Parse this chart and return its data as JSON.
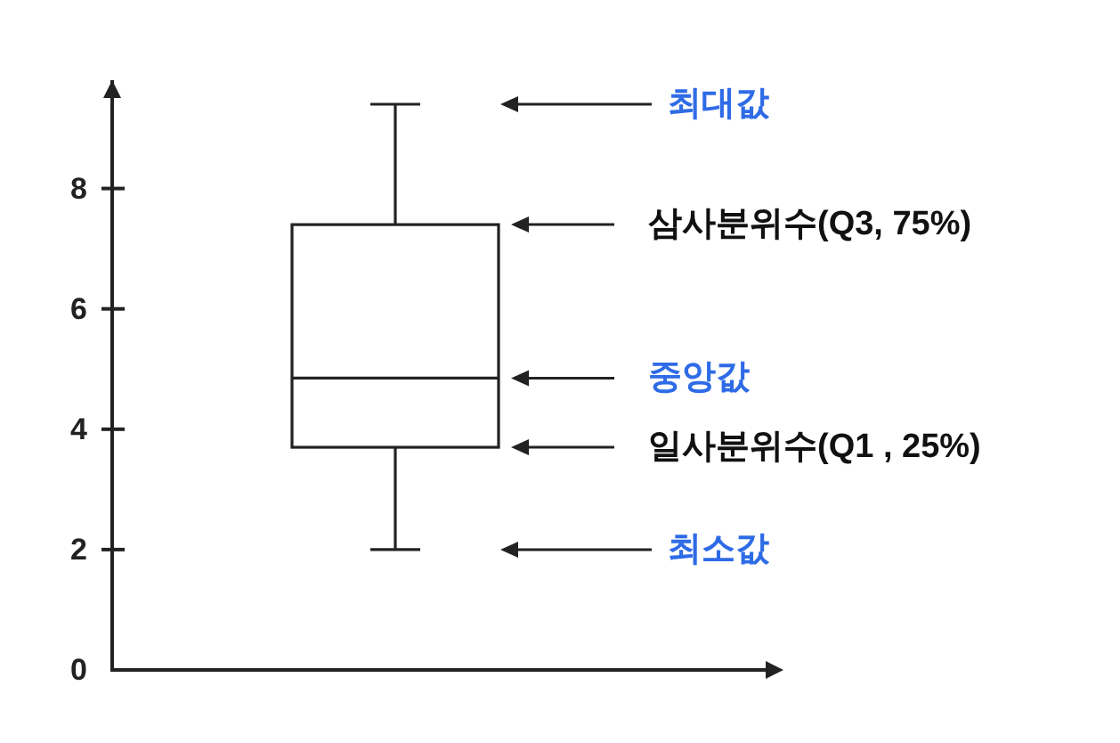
{
  "chart_data": {
    "type": "box",
    "categories": [
      null
    ],
    "series": [
      {
        "color": "#222222",
        "boxes": [
          {
            "low": 2,
            "q1": 3.7,
            "median": 4.85,
            "q3": 7.4,
            "high": 9.4
          }
        ]
      }
    ],
    "ylim": [
      0,
      9.8
    ],
    "yticks": [
      0,
      2,
      4,
      6,
      8
    ],
    "annotations": [
      "최대값",
      "삼사분위수(Q3, 75%)",
      "중앙값",
      "일사분위수(Q1 , 25%)",
      "최소값"
    ]
  }
}
